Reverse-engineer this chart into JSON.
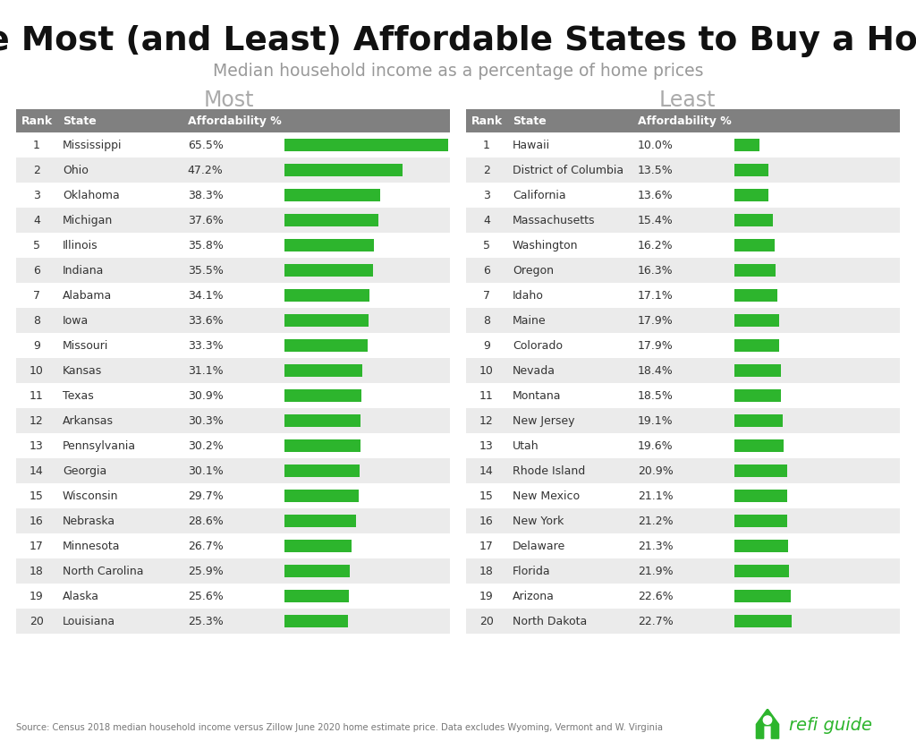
{
  "title": "The Most (and Least) Affordable States to Buy a Home",
  "subtitle": "Median household income as a percentage of home prices",
  "most_label": "Most",
  "least_label": "Least",
  "header_bg": "#808080",
  "header_text": "#ffffff",
  "row_odd_bg": "#ebebeb",
  "row_even_bg": "#ffffff",
  "bar_color": "#2db52d",
  "most": [
    {
      "rank": 1,
      "state": "Mississippi",
      "pct": 65.5
    },
    {
      "rank": 2,
      "state": "Ohio",
      "pct": 47.2
    },
    {
      "rank": 3,
      "state": "Oklahoma",
      "pct": 38.3
    },
    {
      "rank": 4,
      "state": "Michigan",
      "pct": 37.6
    },
    {
      "rank": 5,
      "state": "Illinois",
      "pct": 35.8
    },
    {
      "rank": 6,
      "state": "Indiana",
      "pct": 35.5
    },
    {
      "rank": 7,
      "state": "Alabama",
      "pct": 34.1
    },
    {
      "rank": 8,
      "state": "Iowa",
      "pct": 33.6
    },
    {
      "rank": 9,
      "state": "Missouri",
      "pct": 33.3
    },
    {
      "rank": 10,
      "state": "Kansas",
      "pct": 31.1
    },
    {
      "rank": 11,
      "state": "Texas",
      "pct": 30.9
    },
    {
      "rank": 12,
      "state": "Arkansas",
      "pct": 30.3
    },
    {
      "rank": 13,
      "state": "Pennsylvania",
      "pct": 30.2
    },
    {
      "rank": 14,
      "state": "Georgia",
      "pct": 30.1
    },
    {
      "rank": 15,
      "state": "Wisconsin",
      "pct": 29.7
    },
    {
      "rank": 16,
      "state": "Nebraska",
      "pct": 28.6
    },
    {
      "rank": 17,
      "state": "Minnesota",
      "pct": 26.7
    },
    {
      "rank": 18,
      "state": "North Carolina",
      "pct": 25.9
    },
    {
      "rank": 19,
      "state": "Alaska",
      "pct": 25.6
    },
    {
      "rank": 20,
      "state": "Louisiana",
      "pct": 25.3
    }
  ],
  "least": [
    {
      "rank": 1,
      "state": "Hawaii",
      "pct": 10.0
    },
    {
      "rank": 2,
      "state": "District of Columbia",
      "pct": 13.5
    },
    {
      "rank": 3,
      "state": "California",
      "pct": 13.6
    },
    {
      "rank": 4,
      "state": "Massachusetts",
      "pct": 15.4
    },
    {
      "rank": 5,
      "state": "Washington",
      "pct": 16.2
    },
    {
      "rank": 6,
      "state": "Oregon",
      "pct": 16.3
    },
    {
      "rank": 7,
      "state": "Idaho",
      "pct": 17.1
    },
    {
      "rank": 8,
      "state": "Maine",
      "pct": 17.9
    },
    {
      "rank": 9,
      "state": "Colorado",
      "pct": 17.9
    },
    {
      "rank": 10,
      "state": "Nevada",
      "pct": 18.4
    },
    {
      "rank": 11,
      "state": "Montana",
      "pct": 18.5
    },
    {
      "rank": 12,
      "state": "New Jersey",
      "pct": 19.1
    },
    {
      "rank": 13,
      "state": "Utah",
      "pct": 19.6
    },
    {
      "rank": 14,
      "state": "Rhode Island",
      "pct": 20.9
    },
    {
      "rank": 15,
      "state": "New Mexico",
      "pct": 21.1
    },
    {
      "rank": 16,
      "state": "New York",
      "pct": 21.2
    },
    {
      "rank": 17,
      "state": "Delaware",
      "pct": 21.3
    },
    {
      "rank": 18,
      "state": "Florida",
      "pct": 21.9
    },
    {
      "rank": 19,
      "state": "Arizona",
      "pct": 22.6
    },
    {
      "rank": 20,
      "state": "North Dakota",
      "pct": 22.7
    }
  ],
  "source_text": "Source: Census 2018 median household income versus Zillow June 2020 home estimate price. Data excludes Wyoming, Vermont and W. Virginia",
  "background_color": "#ffffff",
  "most_bar_max": 65.5,
  "least_bar_max": 22.7,
  "fig_width": 10.24,
  "fig_height": 8.38,
  "dpi": 100
}
